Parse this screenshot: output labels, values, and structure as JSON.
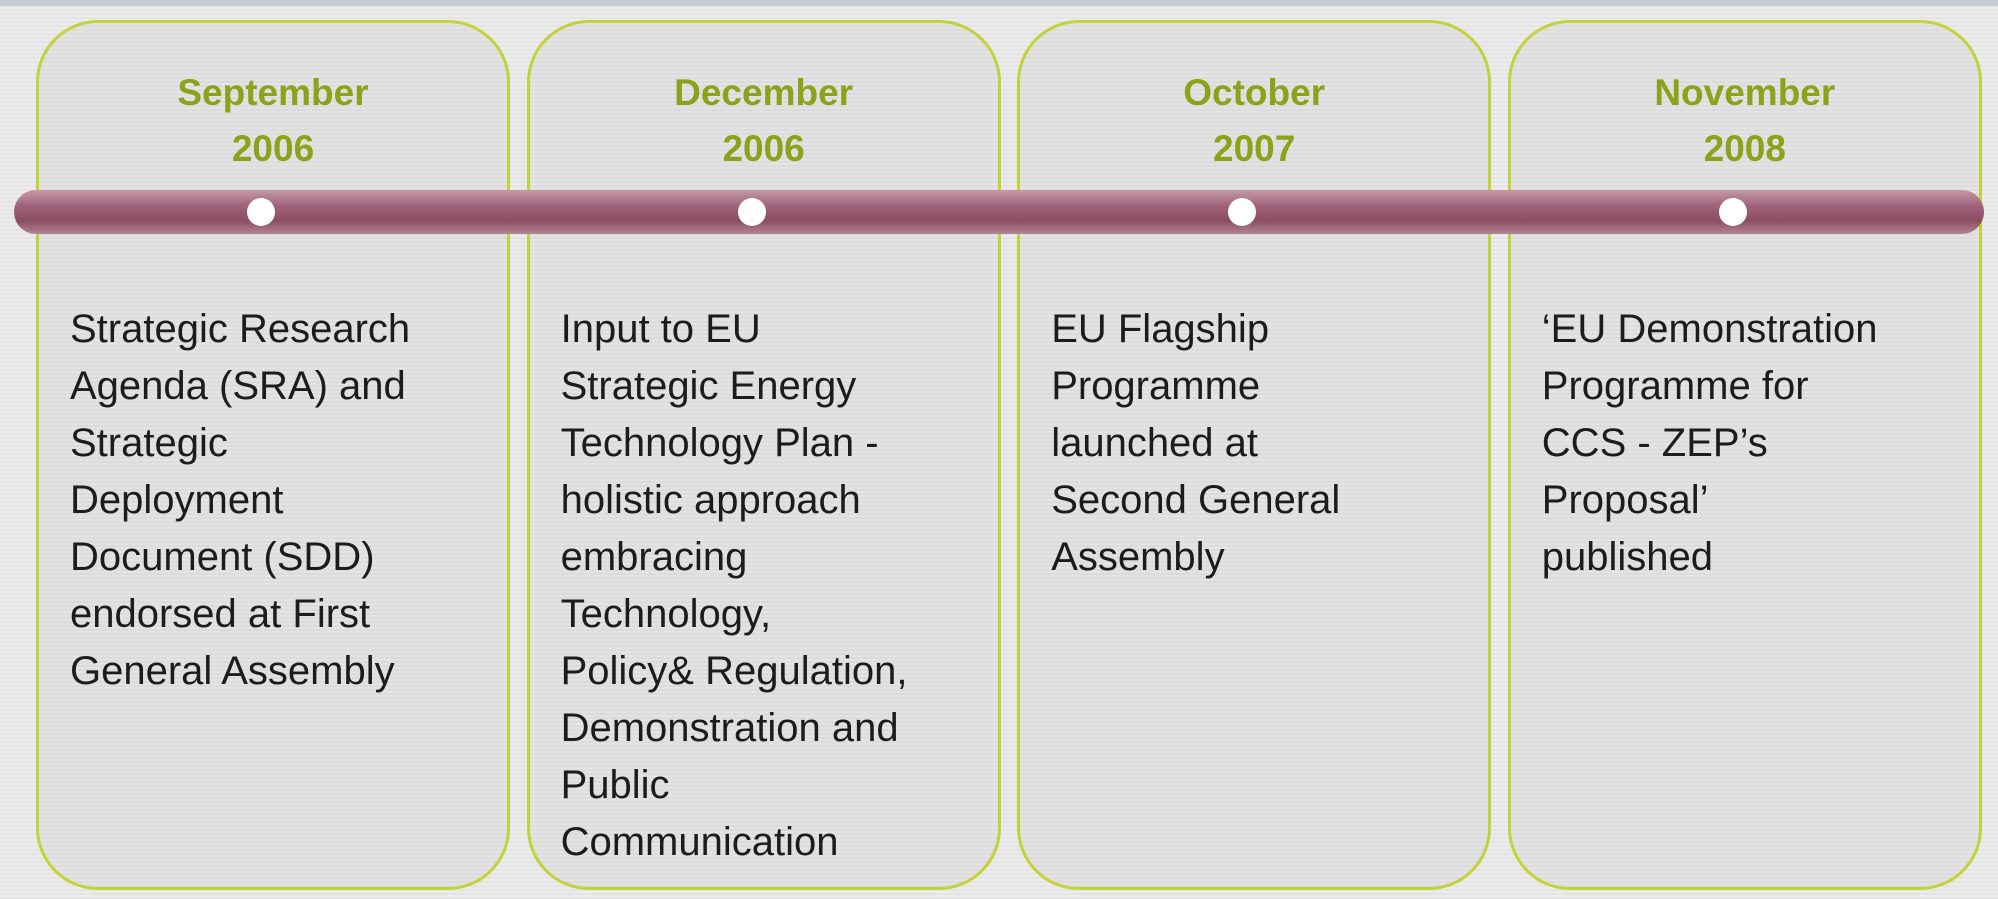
{
  "events": [
    {
      "month": "September",
      "year": "2006",
      "lines": [
        "Strategic Research",
        "Agenda (SRA) and",
        "Strategic",
        "Deployment",
        "Document (SDD)",
        "endorsed at First",
        "General Assembly"
      ]
    },
    {
      "month": "December",
      "year": "2006",
      "lines": [
        "Input to EU",
        "Strategic Energy",
        "Technology Plan -",
        "holistic approach",
        "embracing",
        "Technology,",
        "Policy& Regulation,",
        "Demonstration and",
        "Public",
        "Communication"
      ]
    },
    {
      "month": "October",
      "year": "2007",
      "lines": [
        "EU Flagship",
        "Programme",
        "launched at",
        "Second General",
        "Assembly"
      ]
    },
    {
      "month": "November",
      "year": "2008",
      "lines": [
        "‘EU Demonstration",
        "Programme for",
        "CCS - ZEP’s",
        "Proposal’",
        "published"
      ]
    }
  ]
}
